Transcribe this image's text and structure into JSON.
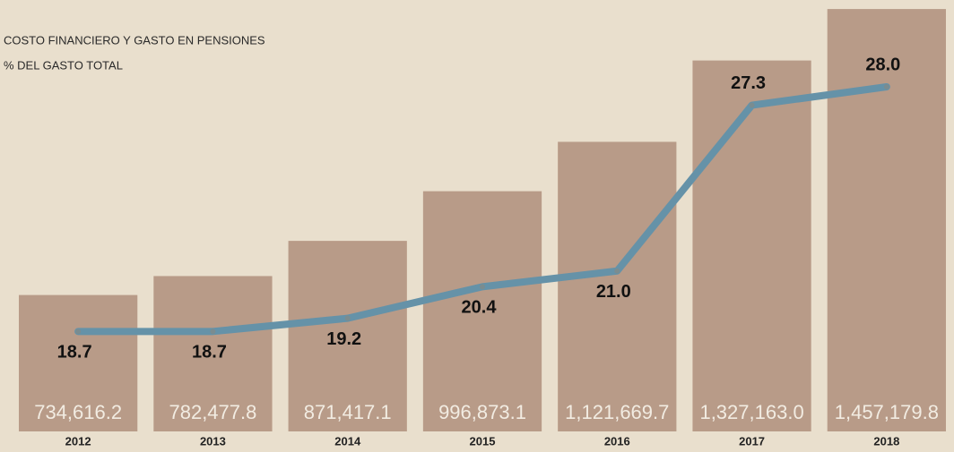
{
  "chart_data": {
    "type": "bar_line",
    "legend": [
      "COSTO FINANCIERO Y GASTO EN PENSIONES",
      "% DEL GASTO TOTAL"
    ],
    "categories": [
      "2012",
      "2013",
      "2014",
      "2015",
      "2016",
      "2017",
      "2018"
    ],
    "series": [
      {
        "name": "COSTO FINANCIERO Y GASTO EN PENSIONES",
        "type": "bar",
        "color": "#b89b88",
        "values": [
          734616.2,
          782477.8,
          871417.1,
          996873.1,
          1121669.7,
          1327163.0,
          1457179.8
        ],
        "value_labels": [
          "734,616.2",
          "782,477.8",
          "871,417.1",
          "996,873.1",
          "1,121,669.7",
          "1,327,163.0",
          "1,457,179.8"
        ]
      },
      {
        "name": "% DEL GASTO TOTAL",
        "type": "line",
        "axis": "y2",
        "color": "#6592a8",
        "values": [
          18.7,
          18.7,
          19.2,
          20.4,
          21.0,
          27.3,
          28.0
        ],
        "value_labels": [
          "18.7",
          "18.7",
          "19.2",
          "20.4",
          "21.0",
          "27.3",
          "28.0"
        ]
      }
    ],
    "ylim": [
      390000,
      1480000
    ],
    "y2lim": [
      14.9,
      31.3
    ]
  }
}
